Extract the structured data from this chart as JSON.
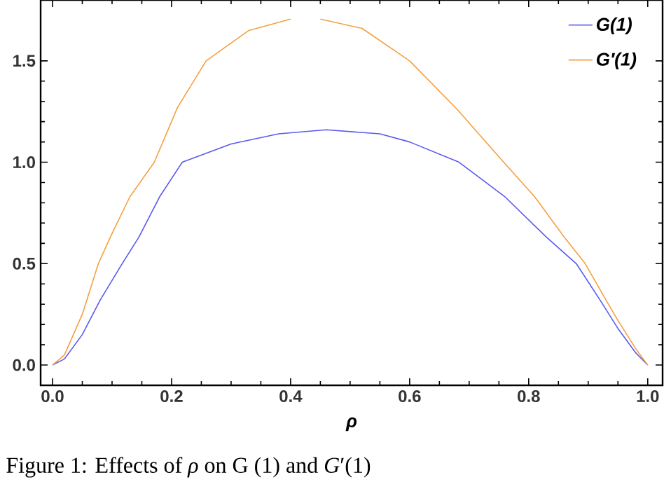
{
  "chart_data": {
    "type": "line",
    "xlabel": "ρ",
    "xlim": [
      -0.02,
      1.025
    ],
    "ylim": [
      -0.1,
      1.8
    ],
    "xticks": [
      {
        "value": 0,
        "label": "0.0"
      },
      {
        "value": 0.2,
        "label": "0.2"
      },
      {
        "value": 0.4,
        "label": "0.4"
      },
      {
        "value": 0.6,
        "label": "0.6"
      },
      {
        "value": 0.8,
        "label": "0.8"
      },
      {
        "value": 1,
        "label": "1.0"
      }
    ],
    "yticks": [
      {
        "value": 0,
        "label": "0.0"
      },
      {
        "value": 0.5,
        "label": "0.5"
      },
      {
        "value": 1,
        "label": "1.0"
      },
      {
        "value": 1.5,
        "label": "1.5"
      }
    ],
    "grid": false,
    "legend": "top right",
    "marker": "none",
    "line_style": "solid",
    "annotations": [
      "Figure 1: Effects of *ρ* on G (1) and *G*′(1)"
    ],
    "series": [
      {
        "name": "G(1)",
        "color": "#5a5aee",
        "x": [
          0,
          0.02,
          0.05,
          0.08,
          0.117,
          0.145,
          0.18,
          0.218,
          0.3,
          0.38,
          0.46,
          0.55,
          0.6,
          0.683,
          0.76,
          0.83,
          0.88,
          0.92,
          0.95,
          0.98,
          1.0
        ],
        "values": [
          0,
          0.03,
          0.15,
          0.32,
          0.5,
          0.63,
          0.83,
          1.0,
          1.09,
          1.14,
          1.16,
          1.14,
          1.1,
          1.0,
          0.83,
          0.63,
          0.5,
          0.32,
          0.18,
          0.06,
          0
        ]
      },
      {
        "name": "G′(1)",
        "color": "#f4a040",
        "x": [
          0,
          0.02,
          0.05,
          0.077,
          0.097,
          0.13,
          0.171,
          0.21,
          0.258,
          0.33,
          0.4,
          0.42,
          0.45,
          0.52,
          0.6,
          0.68,
          0.758,
          0.81,
          0.86,
          0.895,
          0.93,
          0.95,
          0.98,
          1.0
        ],
        "values": [
          0,
          0.05,
          0.25,
          0.5,
          0.63,
          0.83,
          1.0,
          1.27,
          1.5,
          1.65,
          1.706,
          null,
          1.706,
          1.66,
          1.5,
          1.26,
          1.0,
          0.83,
          0.63,
          0.5,
          0.32,
          0.22,
          0.08,
          0
        ]
      }
    ]
  }
}
